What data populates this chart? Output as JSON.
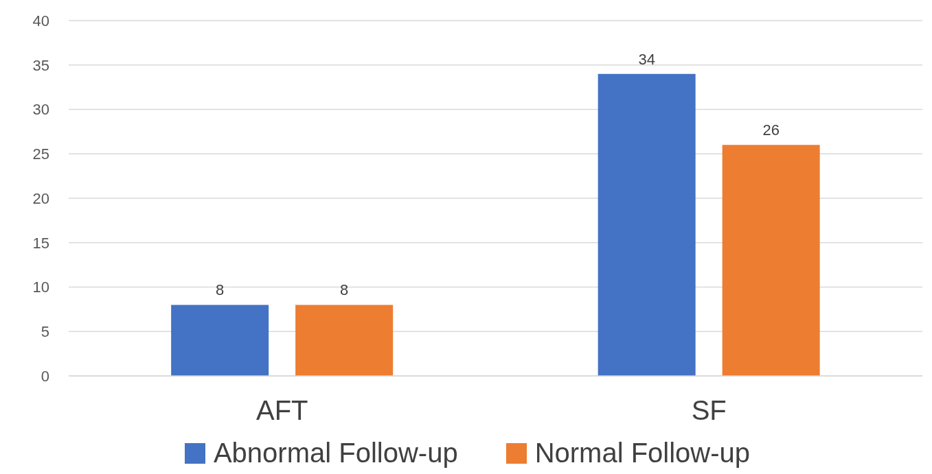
{
  "chart_data": {
    "type": "bar",
    "categories": [
      "AFT",
      "SF"
    ],
    "series": [
      {
        "name": "Abnormal Follow-up",
        "color": "#4472c4",
        "values": [
          8,
          34
        ]
      },
      {
        "name": "Normal Follow-up",
        "color": "#ed7d31",
        "values": [
          8,
          26
        ]
      }
    ],
    "ylim": [
      0,
      40
    ],
    "yticks": [
      0,
      5,
      10,
      15,
      20,
      25,
      30,
      35,
      40
    ],
    "grid": "y",
    "legend": "bottom",
    "data_labels": true
  }
}
